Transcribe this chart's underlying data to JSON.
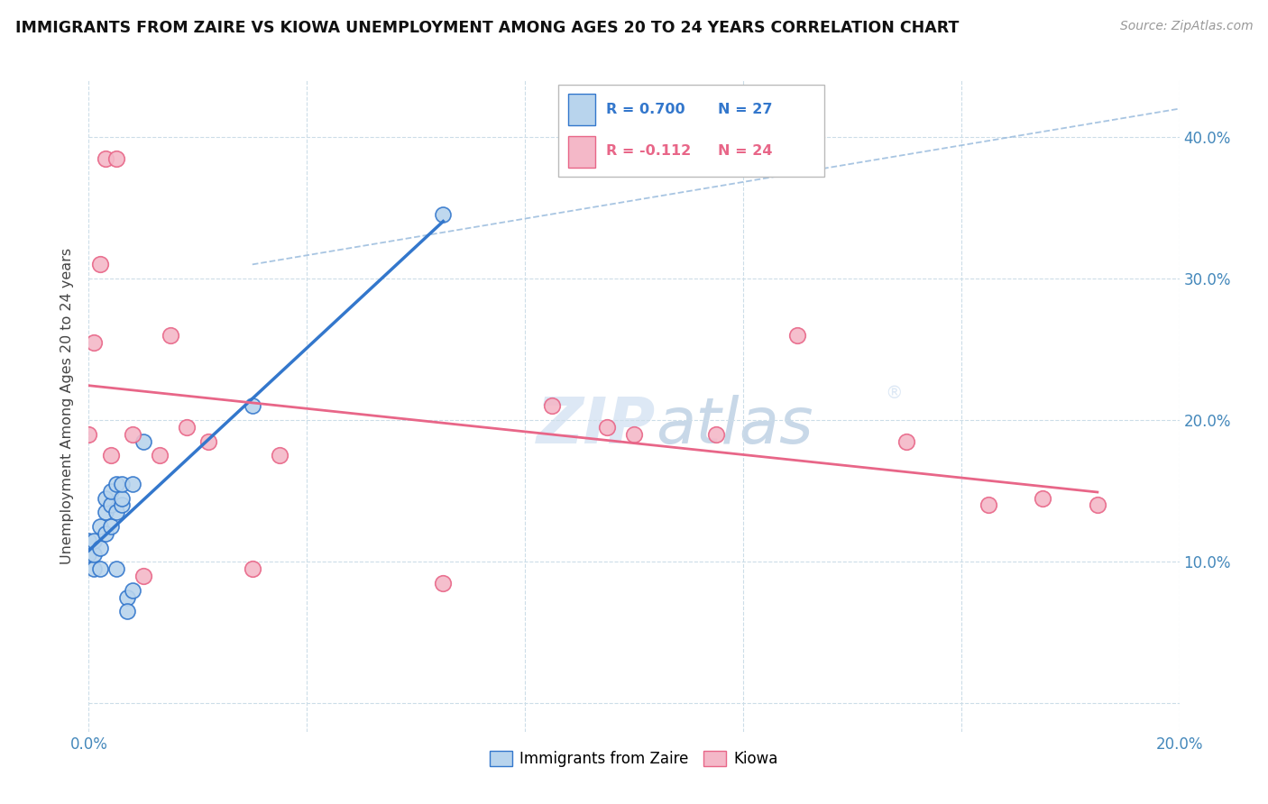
{
  "title": "IMMIGRANTS FROM ZAIRE VS KIOWA UNEMPLOYMENT AMONG AGES 20 TO 24 YEARS CORRELATION CHART",
  "source": "Source: ZipAtlas.com",
  "ylabel": "Unemployment Among Ages 20 to 24 years",
  "xlim": [
    0.0,
    0.2
  ],
  "ylim": [
    -0.02,
    0.44
  ],
  "xticks": [
    0.0,
    0.04,
    0.08,
    0.12,
    0.16,
    0.2
  ],
  "yticks": [
    0.0,
    0.1,
    0.2,
    0.3,
    0.4
  ],
  "blue_r": 0.7,
  "blue_n": 27,
  "pink_r": -0.112,
  "pink_n": 24,
  "blue_color": "#b8d4ed",
  "pink_color": "#f4b8c8",
  "blue_line_color": "#3377cc",
  "pink_line_color": "#e86688",
  "dashed_line_color": "#99bbdd",
  "watermark_color": "#dde8f5",
  "blue_points_x": [
    0.0,
    0.0,
    0.001,
    0.001,
    0.001,
    0.002,
    0.002,
    0.002,
    0.003,
    0.003,
    0.003,
    0.004,
    0.004,
    0.004,
    0.005,
    0.005,
    0.005,
    0.006,
    0.006,
    0.006,
    0.007,
    0.007,
    0.008,
    0.008,
    0.01,
    0.03,
    0.065
  ],
  "blue_points_y": [
    0.105,
    0.115,
    0.095,
    0.105,
    0.115,
    0.095,
    0.11,
    0.125,
    0.12,
    0.135,
    0.145,
    0.125,
    0.14,
    0.15,
    0.095,
    0.135,
    0.155,
    0.14,
    0.145,
    0.155,
    0.075,
    0.065,
    0.08,
    0.155,
    0.185,
    0.21,
    0.345
  ],
  "pink_points_x": [
    0.0,
    0.001,
    0.002,
    0.003,
    0.004,
    0.005,
    0.008,
    0.01,
    0.013,
    0.015,
    0.018,
    0.022,
    0.03,
    0.035,
    0.065,
    0.085,
    0.095,
    0.1,
    0.115,
    0.13,
    0.15,
    0.165,
    0.175,
    0.185
  ],
  "pink_points_y": [
    0.19,
    0.255,
    0.31,
    0.385,
    0.175,
    0.385,
    0.19,
    0.09,
    0.175,
    0.26,
    0.195,
    0.185,
    0.095,
    0.175,
    0.085,
    0.21,
    0.195,
    0.19,
    0.19,
    0.26,
    0.185,
    0.14,
    0.145,
    0.14
  ]
}
